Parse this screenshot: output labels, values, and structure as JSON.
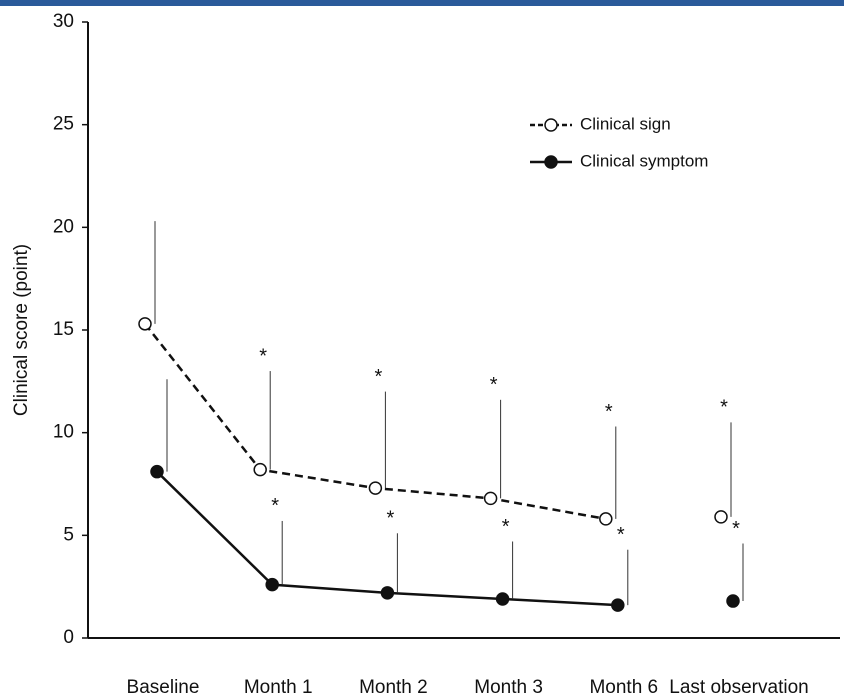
{
  "chart_data": {
    "type": "line",
    "y_label": "Clinical score (point)",
    "categories": [
      "Baseline",
      "Month 1",
      "Month 2",
      "Month 3",
      "Month 6",
      "Last observation"
    ],
    "gap_before_last": true,
    "series": [
      {
        "name": "Clinical sign",
        "color": "#111111",
        "dashed": true,
        "filled": false,
        "values": [
          15.3,
          8.2,
          7.3,
          6.8,
          5.8,
          5.9
        ],
        "errors": [
          5.0,
          4.8,
          4.7,
          4.8,
          4.5,
          4.6
        ],
        "value_annotations": [
          null,
          "*",
          "*",
          "*",
          "*",
          "*"
        ]
      },
      {
        "name": "Clinical symptom",
        "color": "#111111",
        "dashed": false,
        "filled": true,
        "values": [
          8.1,
          2.6,
          2.2,
          1.9,
          1.6,
          1.8
        ],
        "errors": [
          4.5,
          3.1,
          2.9,
          2.8,
          2.7,
          2.8
        ],
        "value_annotations": [
          null,
          "*",
          "*",
          "*",
          "*",
          "*"
        ]
      }
    ],
    "ylim": [
      0,
      30
    ],
    "yticks": [
      0,
      5,
      10,
      15,
      20,
      25,
      30
    ],
    "grid": false
  }
}
